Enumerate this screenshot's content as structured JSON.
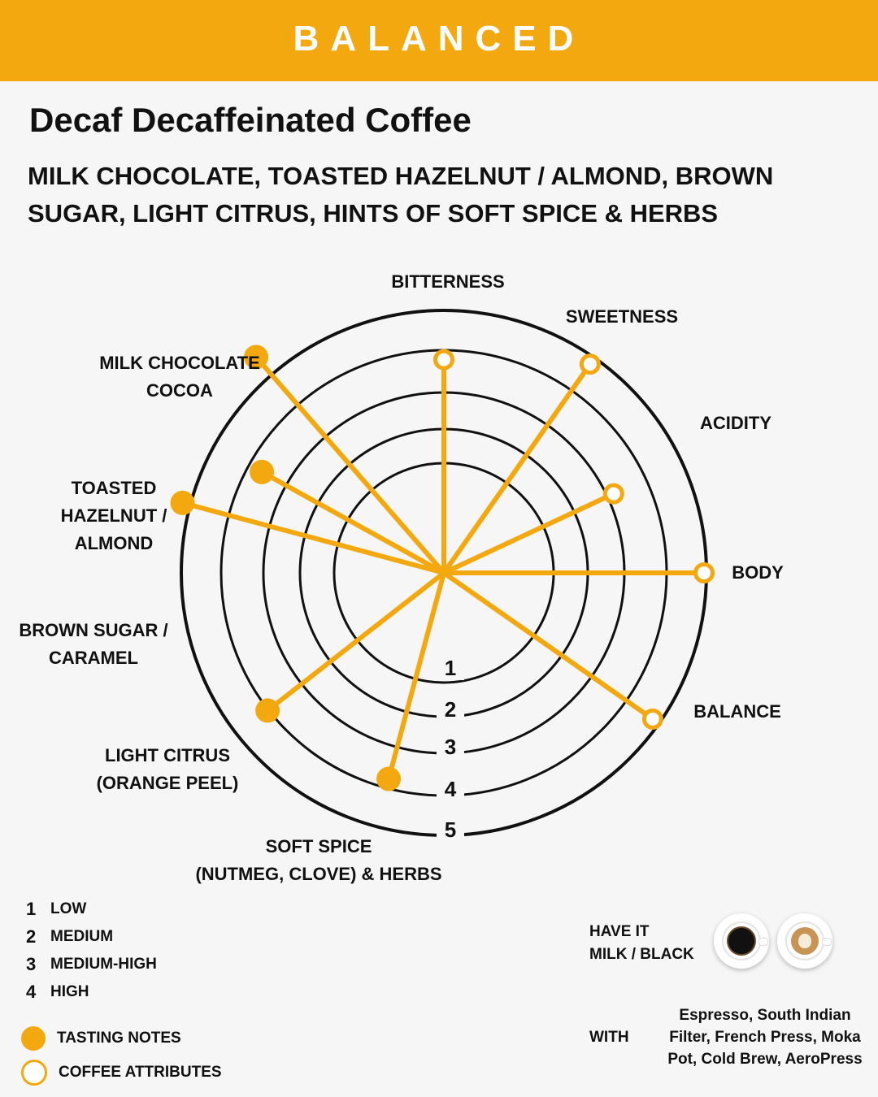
{
  "banner": {
    "text": "BALANCED"
  },
  "product": {
    "title": "Decaf Decaffeinated Coffee",
    "tasting_notes": "MILK CHOCOLATE, TOASTED HAZELNUT / ALMOND, BROWN SUGAR, LIGHT CITRUS, HINTS OF SOFT SPICE & HERBS"
  },
  "chart_data": {
    "type": "radar",
    "scale": {
      "min": 0,
      "max": 5,
      "rings": [
        1,
        2,
        3,
        4,
        5
      ],
      "ring_labels": [
        "1",
        "2",
        "3",
        "4",
        "5"
      ]
    },
    "spokes": [
      {
        "label": [
          "BITTERNESS"
        ],
        "value": 4.1,
        "kind": "attribute",
        "key": "bitterness"
      },
      {
        "label": [
          "SWEETNESS"
        ],
        "value": 4.9,
        "kind": "attribute",
        "key": "sweetness"
      },
      {
        "label": [
          "ACIDITY"
        ],
        "value": 3.6,
        "kind": "attribute",
        "key": "acidity"
      },
      {
        "label": [
          "BODY"
        ],
        "value": 5.0,
        "kind": "attribute",
        "key": "body"
      },
      {
        "label": [
          "BALANCE"
        ],
        "value": 4.9,
        "kind": "attribute",
        "key": "balance"
      },
      {
        "label": [
          "SOFT SPICE",
          "(NUTMEG, CLOVE) & HERBS"
        ],
        "value": 4.1,
        "kind": "tasting-note",
        "key": "soft-spice"
      },
      {
        "label": [
          "LIGHT CITRUS",
          "(ORANGE PEEL)"
        ],
        "value": 4.3,
        "kind": "tasting-note",
        "key": "light-citrus"
      },
      {
        "label": [
          "BROWN SUGAR /",
          "CARAMEL"
        ],
        "value": 5.2,
        "kind": "tasting-note",
        "key": "brown-sugar"
      },
      {
        "label": [
          "TOASTED",
          "HAZELNUT /",
          "ALMOND"
        ],
        "value": 4.0,
        "kind": "tasting-note",
        "key": "toasted-hazelnut"
      },
      {
        "label": [
          "MILK CHOCOLATE",
          "COCOA"
        ],
        "value": 5.5,
        "kind": "tasting-note",
        "key": "milk-chocolate"
      }
    ],
    "color": "#f3a80f",
    "ring_color": "#111111"
  },
  "legend": {
    "scale": [
      {
        "num": "1",
        "label": "LOW"
      },
      {
        "num": "2",
        "label": "MEDIUM"
      },
      {
        "num": "3",
        "label": "MEDIUM-HIGH"
      },
      {
        "num": "4",
        "label": "HIGH"
      }
    ],
    "tasting_notes": "TASTING NOTES",
    "coffee_attributes": "COFFEE ATTRIBUTES"
  },
  "serving": {
    "have_it_line1": "HAVE IT",
    "have_it_line2": "MILK / BLACK",
    "with_label": "WITH",
    "methods": "Espresso, South Indian Filter, French Press, Moka Pot, Cold Brew,  AeroPress",
    "icons": [
      "black-coffee-icon",
      "latte-icon"
    ]
  }
}
